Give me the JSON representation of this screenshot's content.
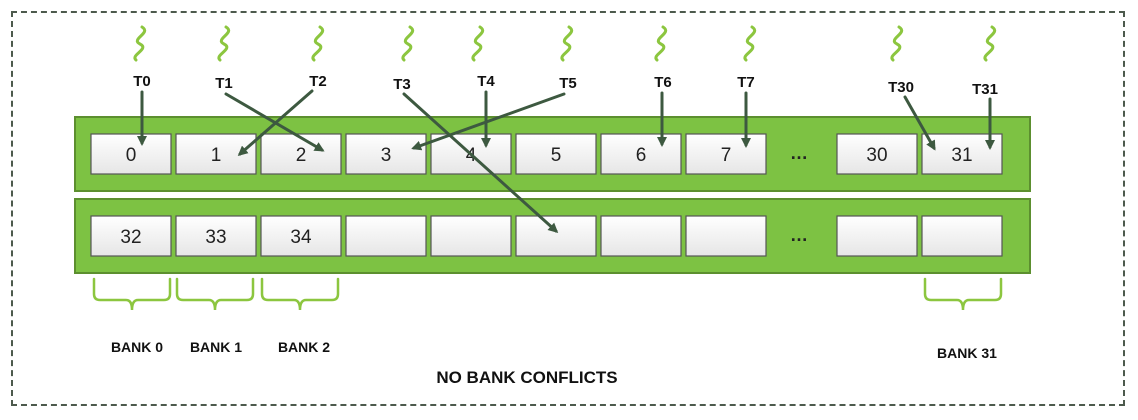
{
  "threads": [
    {
      "label": "T0",
      "target": "0"
    },
    {
      "label": "T1",
      "target": "2"
    },
    {
      "label": "T2",
      "target": "1"
    },
    {
      "label": "T3",
      "target": "row2-col5"
    },
    {
      "label": "T4",
      "target": "4"
    },
    {
      "label": "T5",
      "target": "3"
    },
    {
      "label": "T6",
      "target": "6"
    },
    {
      "label": "T7",
      "target": "7"
    },
    {
      "label": "T30",
      "target": "31"
    },
    {
      "label": "T31",
      "target": "31"
    }
  ],
  "row1": {
    "cells": [
      "0",
      "1",
      "2",
      "3",
      "4",
      "5",
      "6",
      "7",
      "30",
      "31"
    ],
    "ellipsis": "…"
  },
  "row2": {
    "cells": [
      "32",
      "33",
      "34",
      "",
      "",
      "",
      "",
      "",
      "",
      ""
    ],
    "ellipsis": "…"
  },
  "banks": [
    "BANK 0",
    "BANK 1",
    "BANK 2",
    "BANK 31"
  ],
  "caption": "NO BANK CONFLICTS",
  "colors": {
    "row_green": "#7dc243",
    "row_border": "#5c8f2f",
    "arrow": "#3d5940",
    "squiggle": "#8cc63f",
    "cell_fill": "#f2f2f2",
    "frame": "#4d5a4d"
  }
}
